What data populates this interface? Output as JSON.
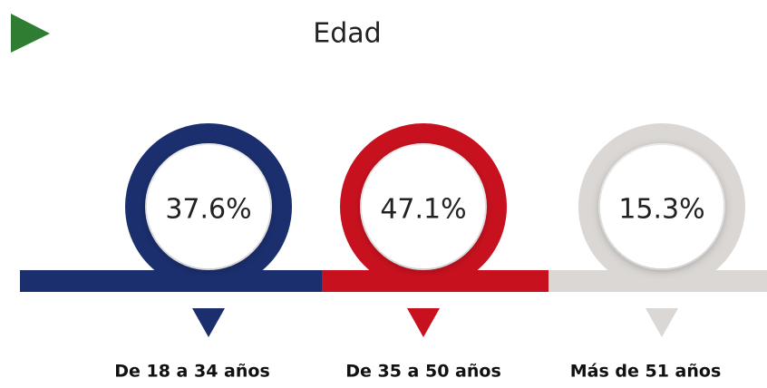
{
  "chart_data": {
    "type": "ring",
    "title": "Edad",
    "categories": [
      "De 18 a 34 años",
      "De 35 a 50 años",
      "Más de 51 años"
    ],
    "values": [
      37.6,
      47.1,
      15.3
    ],
    "value_labels": [
      "37.6%",
      "47.1%",
      "15.3%"
    ],
    "colors": [
      "#1b2f6e",
      "#c8111f",
      "#dad7d4"
    ]
  }
}
